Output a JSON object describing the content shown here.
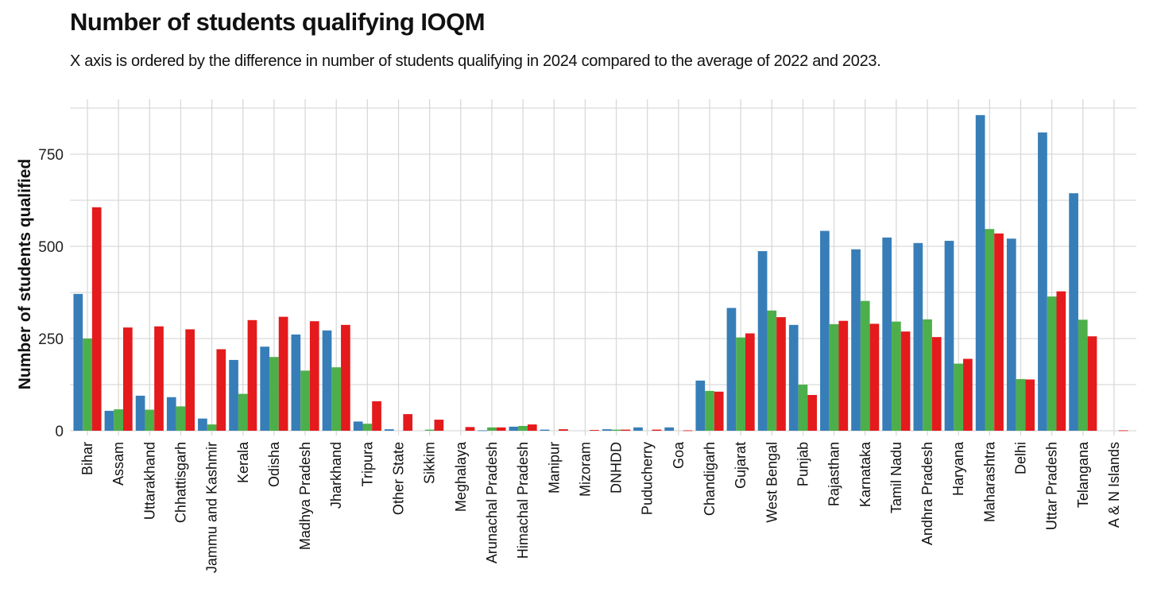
{
  "chart_data": {
    "type": "bar",
    "title": "Number of students qualifying IOQM",
    "subtitle": "X axis is ordered by the difference in number of students qualifying in 2024 compared to the average of 2022 and 2023.",
    "xlabel": "",
    "ylabel": "Number of students qualified",
    "ylim": [
      0,
      880
    ],
    "yticks": [
      0,
      250,
      500,
      750
    ],
    "grid": true,
    "legend": "none",
    "categories": [
      "Bihar",
      "Assam",
      "Uttarakhand",
      "Chhattisgarh",
      "Jammu and Kashmir",
      "Kerala",
      "Odisha",
      "Madhya Pradesh",
      "Jharkhand",
      "Tripura",
      "Other State",
      "Sikkim",
      "Meghalaya",
      "Arunachal Pradesh",
      "Himachal Pradesh",
      "Manipur",
      "Mizoram",
      "DNHDD",
      "Puducherry",
      "Goa",
      "Chandigarh",
      "Gujarat",
      "West Bengal",
      "Punjab",
      "Rajasthan",
      "Karnataka",
      "Tamil Nadu",
      "Andhra Pradesh",
      "Haryana",
      "Maharashtra",
      "Delhi",
      "Uttar Pradesh",
      "Telangana",
      "A & N Islands"
    ],
    "series": [
      {
        "color": "#377eb8",
        "values": [
          371,
          54,
          95,
          91,
          33,
          192,
          228,
          261,
          272,
          25,
          4,
          0,
          0,
          1,
          11,
          3,
          0,
          4,
          9,
          9,
          136,
          333,
          487,
          287,
          542,
          492,
          524,
          509,
          515,
          856,
          521,
          809,
          644,
          0
        ]
      },
      {
        "color": "#4daf4a",
        "values": [
          250,
          58,
          57,
          66,
          17,
          100,
          200,
          163,
          172,
          19,
          0,
          3,
          0,
          9,
          13,
          0,
          0,
          3,
          0,
          0,
          108,
          253,
          326,
          125,
          289,
          352,
          296,
          302,
          182,
          547,
          140,
          364,
          301,
          0
        ]
      },
      {
        "color": "#e41a1c",
        "values": [
          606,
          280,
          283,
          275,
          221,
          300,
          309,
          297,
          287,
          80,
          45,
          30,
          10,
          9,
          17,
          4,
          2,
          3,
          3,
          1,
          106,
          264,
          308,
          97,
          298,
          290,
          269,
          254,
          195,
          535,
          139,
          378,
          256,
          1
        ]
      }
    ]
  }
}
